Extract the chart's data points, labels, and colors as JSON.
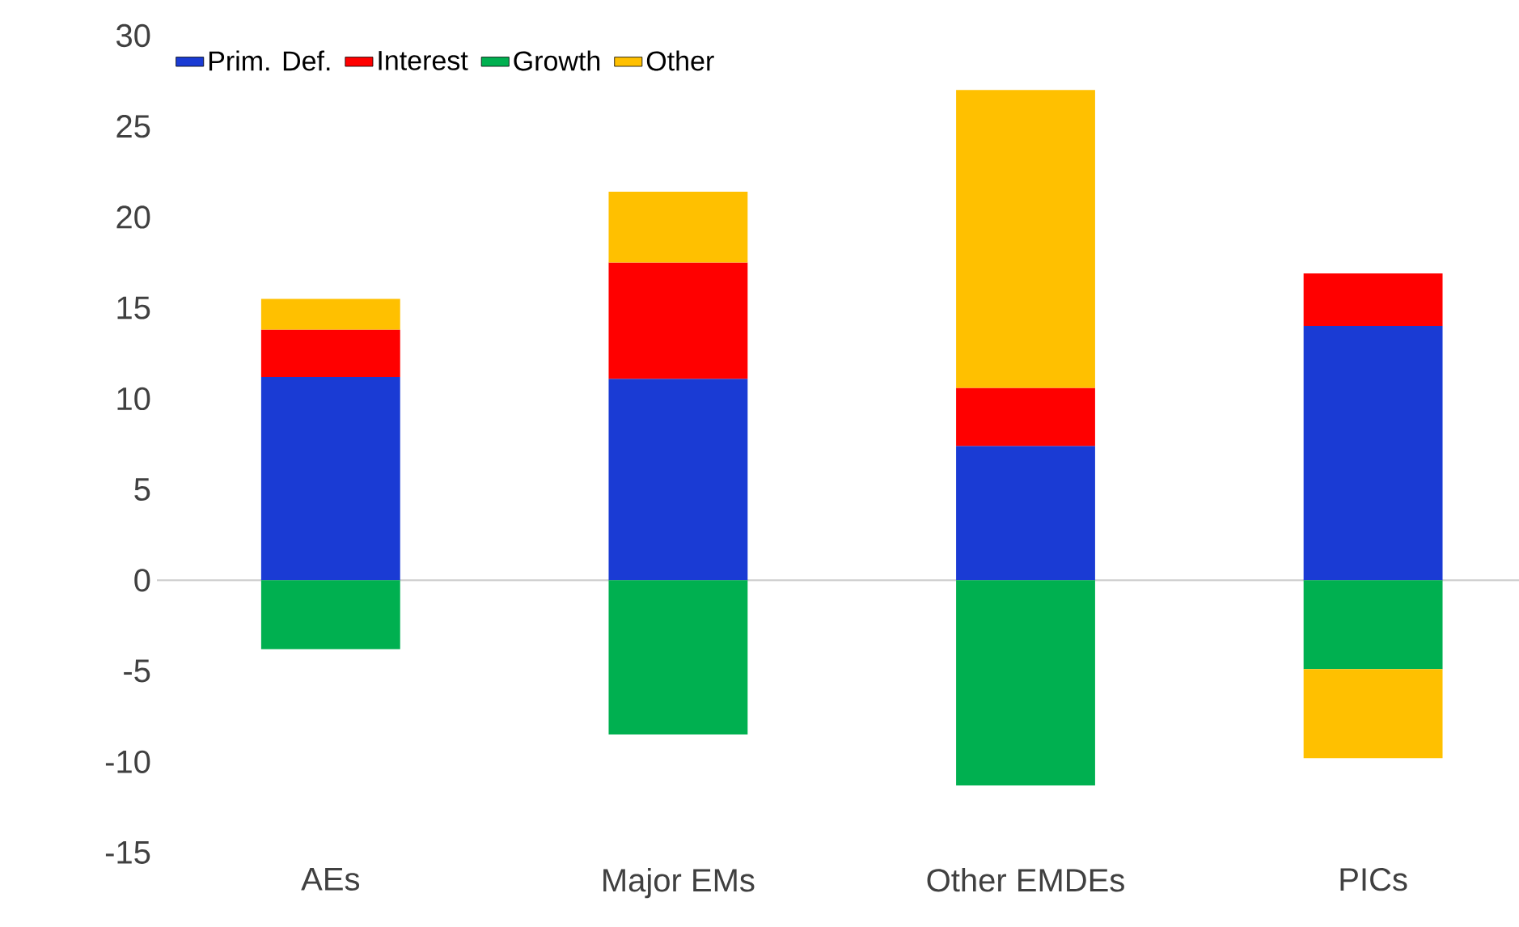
{
  "chart_data": {
    "type": "bar",
    "stacked": true,
    "categories": [
      "AEs",
      "Major EMs",
      "Other EMDEs",
      "PICs"
    ],
    "series": [
      {
        "name": "Prim. Def.",
        "color": "#1a3bd4",
        "values": [
          11.2,
          11.1,
          7.4,
          14.0
        ]
      },
      {
        "name": "Interest",
        "color": "#ff0000",
        "values": [
          2.6,
          6.4,
          3.2,
          2.9
        ]
      },
      {
        "name": "Growth",
        "color": "#00b050",
        "values": [
          -3.8,
          -8.5,
          -11.3,
          -4.9
        ]
      },
      {
        "name": "Other",
        "color": "#ffc000",
        "values": [
          1.7,
          3.9,
          16.4,
          -4.9
        ]
      }
    ],
    "ylim": [
      -15,
      30
    ],
    "yticks": [
      -15,
      -10,
      -5,
      0,
      5,
      10,
      15,
      20,
      25,
      30
    ],
    "legend": "top left"
  }
}
